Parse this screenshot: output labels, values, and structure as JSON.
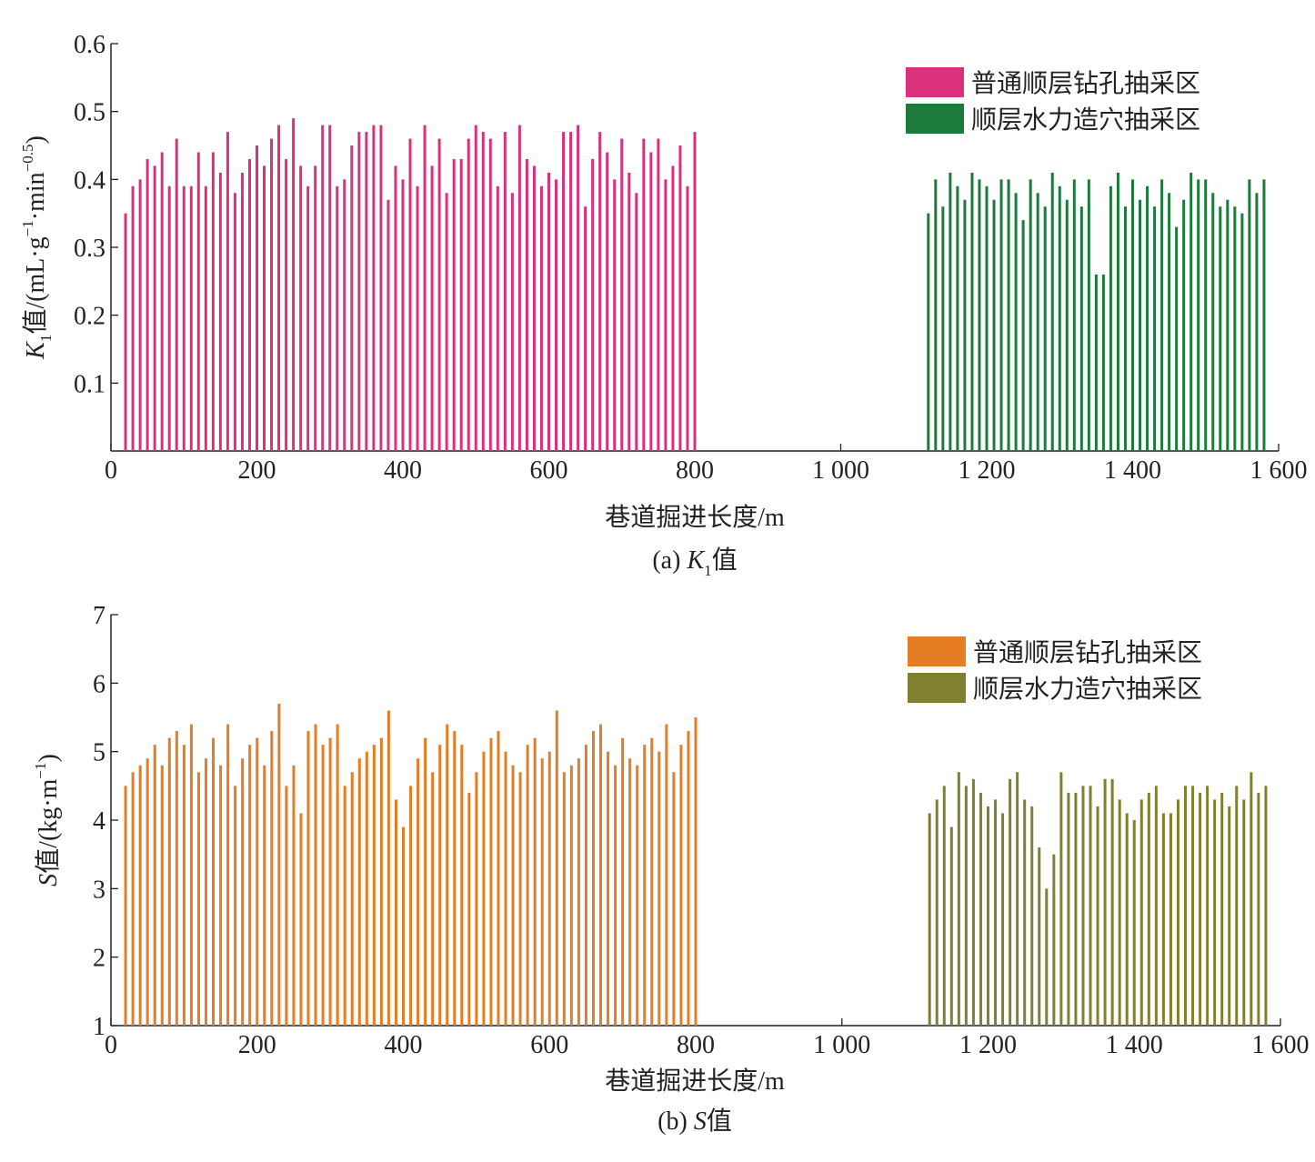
{
  "chart_data": [
    {
      "type": "bar",
      "ylabel_parts": [
        "K",
        "1",
        "值/(mL·g",
        "−1",
        "·min",
        "−0.5",
        ")"
      ],
      "xlabel": "巷道掘进长度/m",
      "caption_parts": [
        "(a) ",
        "K",
        "1",
        "值"
      ],
      "xlim": [
        0,
        1600
      ],
      "ylim": [
        0,
        0.6
      ],
      "xticks": [
        0,
        200,
        400,
        600,
        800,
        {
          "value": 1000,
          "label": "1 000"
        },
        {
          "value": 1200,
          "label": "1 200"
        },
        {
          "value": 1400,
          "label": "1 400"
        },
        {
          "value": 1600,
          "label": "1 600"
        }
      ],
      "yticks": [
        0.1,
        0.2,
        0.3,
        0.4,
        0.5,
        0.6
      ],
      "legend": "upper right",
      "series": [
        {
          "name": "普通顺层钻孔抽采区",
          "color": "#d9317c",
          "x": [
            20,
            30,
            40,
            50,
            60,
            70,
            80,
            90,
            100,
            110,
            120,
            130,
            140,
            150,
            160,
            170,
            180,
            190,
            200,
            210,
            220,
            230,
            240,
            250,
            260,
            270,
            280,
            290,
            300,
            310,
            320,
            330,
            340,
            350,
            360,
            370,
            380,
            390,
            400,
            410,
            420,
            430,
            440,
            450,
            460,
            470,
            480,
            490,
            500,
            510,
            520,
            530,
            540,
            550,
            560,
            570,
            580,
            590,
            600,
            610,
            620,
            630,
            640,
            650,
            660,
            670,
            680,
            690,
            700,
            710,
            720,
            730,
            740,
            750,
            760,
            770,
            780,
            790,
            800
          ],
          "values": [
            0.35,
            0.39,
            0.4,
            0.43,
            0.42,
            0.44,
            0.39,
            0.46,
            0.39,
            0.39,
            0.44,
            0.39,
            0.44,
            0.41,
            0.47,
            0.38,
            0.41,
            0.43,
            0.45,
            0.42,
            0.46,
            0.48,
            0.43,
            0.49,
            0.42,
            0.39,
            0.42,
            0.48,
            0.48,
            0.39,
            0.4,
            0.45,
            0.47,
            0.47,
            0.48,
            0.48,
            0.37,
            0.42,
            0.4,
            0.46,
            0.39,
            0.48,
            0.42,
            0.46,
            0.38,
            0.43,
            0.43,
            0.46,
            0.48,
            0.47,
            0.46,
            0.39,
            0.47,
            0.38,
            0.48,
            0.43,
            0.42,
            0.39,
            0.41,
            0.4,
            0.47,
            0.47,
            0.48,
            0.36,
            0.43,
            0.47,
            0.44,
            0.4,
            0.46,
            0.41,
            0.38,
            0.46,
            0.44,
            0.46,
            0.4,
            0.42,
            0.45,
            0.39,
            0.47
          ]
        },
        {
          "name": "顺层水力造穴抽采区",
          "color": "#1c7a3c",
          "x": [
            1120,
            1130,
            1140,
            1150,
            1160,
            1170,
            1180,
            1190,
            1200,
            1210,
            1220,
            1230,
            1240,
            1250,
            1260,
            1270,
            1280,
            1290,
            1300,
            1310,
            1320,
            1330,
            1340,
            1350,
            1360,
            1370,
            1380,
            1390,
            1400,
            1410,
            1420,
            1430,
            1440,
            1450,
            1460,
            1470,
            1480,
            1490,
            1500,
            1510,
            1520,
            1530,
            1540,
            1550,
            1560,
            1570,
            1580
          ],
          "values": [
            0.35,
            0.4,
            0.36,
            0.41,
            0.39,
            0.37,
            0.41,
            0.4,
            0.39,
            0.37,
            0.4,
            0.4,
            0.38,
            0.34,
            0.4,
            0.38,
            0.36,
            0.41,
            0.39,
            0.37,
            0.4,
            0.36,
            0.4,
            0.26,
            0.26,
            0.39,
            0.41,
            0.36,
            0.4,
            0.37,
            0.39,
            0.36,
            0.4,
            0.38,
            0.33,
            0.37,
            0.41,
            0.4,
            0.4,
            0.38,
            0.36,
            0.37,
            0.36,
            0.35,
            0.4,
            0.38,
            0.4
          ]
        }
      ]
    },
    {
      "type": "bar",
      "ylabel_parts": [
        "S",
        "值/(kg·m",
        "−1",
        ")"
      ],
      "xlabel": "巷道掘进长度/m",
      "caption_parts": [
        "(b) ",
        "S",
        "值"
      ],
      "xlim": [
        0,
        1600
      ],
      "ylim": [
        1,
        7
      ],
      "xticks": [
        0,
        200,
        400,
        600,
        800,
        {
          "value": 1000,
          "label": "1 000"
        },
        {
          "value": 1200,
          "label": "1 200"
        },
        {
          "value": 1400,
          "label": "1 400"
        },
        {
          "value": 1600,
          "label": "1 600"
        }
      ],
      "yticks": [
        1,
        2,
        3,
        4,
        5,
        6,
        7
      ],
      "legend": "upper right",
      "series": [
        {
          "name": "普通顺层钻孔抽采区",
          "color": "#e57d24",
          "x": [
            20,
            30,
            40,
            50,
            60,
            70,
            80,
            90,
            100,
            110,
            120,
            130,
            140,
            150,
            160,
            170,
            180,
            190,
            200,
            210,
            220,
            230,
            240,
            250,
            260,
            270,
            280,
            290,
            300,
            310,
            320,
            330,
            340,
            350,
            360,
            370,
            380,
            390,
            400,
            410,
            420,
            430,
            440,
            450,
            460,
            470,
            480,
            490,
            500,
            510,
            520,
            530,
            540,
            550,
            560,
            570,
            580,
            590,
            600,
            610,
            620,
            630,
            640,
            650,
            660,
            670,
            680,
            690,
            700,
            710,
            720,
            730,
            740,
            750,
            760,
            770,
            780,
            790,
            800
          ],
          "values": [
            4.5,
            4.7,
            4.8,
            4.9,
            5.1,
            4.8,
            5.2,
            5.3,
            5.1,
            5.4,
            4.7,
            4.9,
            5.2,
            4.8,
            5.4,
            4.5,
            4.9,
            5.1,
            5.2,
            4.8,
            5.3,
            5.7,
            4.5,
            4.8,
            4.1,
            5.3,
            5.4,
            5.1,
            5.2,
            5.4,
            4.5,
            4.7,
            4.9,
            5.0,
            5.1,
            5.2,
            5.6,
            4.3,
            3.9,
            4.5,
            4.9,
            5.2,
            4.7,
            5.1,
            5.4,
            5.3,
            5.1,
            4.4,
            4.7,
            5.0,
            5.2,
            5.3,
            5.0,
            4.8,
            4.7,
            5.1,
            5.2,
            4.9,
            5.0,
            5.6,
            4.7,
            4.8,
            4.9,
            5.1,
            5.3,
            5.4,
            5.0,
            4.8,
            5.2,
            4.9,
            4.8,
            5.1,
            5.2,
            5.0,
            5.4,
            4.7,
            5.1,
            5.3,
            5.5
          ]
        },
        {
          "name": "顺层水力造穴抽采区",
          "color": "#808030",
          "x": [
            1120,
            1130,
            1140,
            1150,
            1160,
            1170,
            1180,
            1190,
            1200,
            1210,
            1220,
            1230,
            1240,
            1250,
            1260,
            1270,
            1280,
            1290,
            1300,
            1310,
            1320,
            1330,
            1340,
            1350,
            1360,
            1370,
            1380,
            1390,
            1400,
            1410,
            1420,
            1430,
            1440,
            1450,
            1460,
            1470,
            1480,
            1490,
            1500,
            1510,
            1520,
            1530,
            1540,
            1550,
            1560,
            1570,
            1580
          ],
          "values": [
            4.1,
            4.3,
            4.5,
            3.9,
            4.7,
            4.5,
            4.6,
            4.4,
            4.2,
            4.3,
            4.1,
            4.6,
            4.7,
            4.3,
            4.2,
            3.6,
            3.0,
            3.5,
            4.7,
            4.4,
            4.4,
            4.5,
            4.5,
            4.2,
            4.6,
            4.6,
            4.3,
            4.1,
            4.0,
            4.3,
            4.4,
            4.5,
            4.1,
            4.1,
            4.3,
            4.5,
            4.5,
            4.4,
            4.5,
            4.3,
            4.4,
            4.2,
            4.5,
            4.3,
            4.7,
            4.4,
            4.5
          ]
        }
      ]
    }
  ]
}
